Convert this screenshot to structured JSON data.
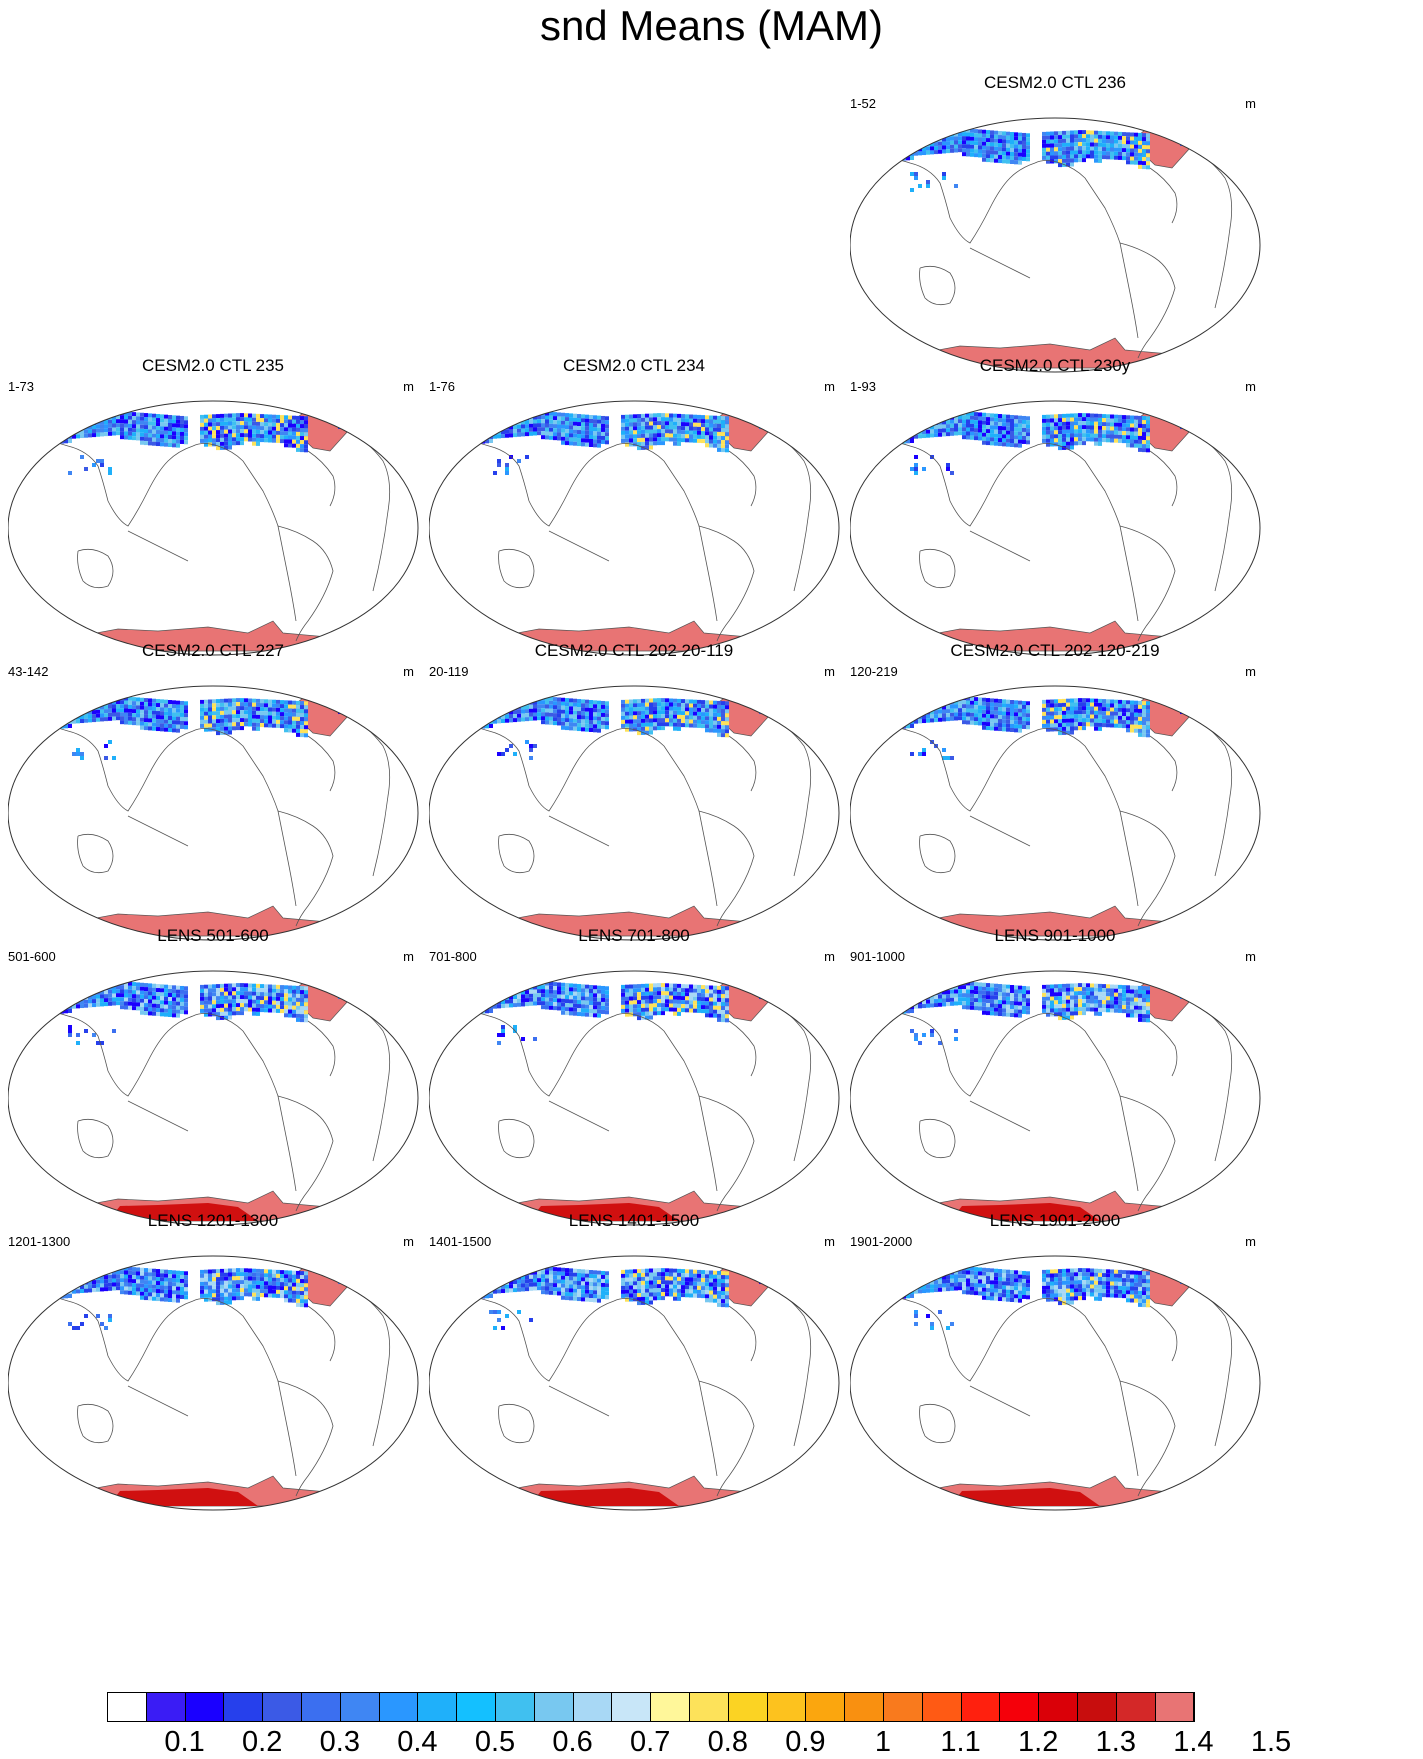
{
  "title": "snd Means (MAM)",
  "units": "m",
  "panels": [
    {
      "id": "p01",
      "title": "CESM2.0 CTL 236",
      "range": "1-52",
      "col": 2,
      "row": 0,
      "style": "ctl",
      "antarctica": "plain"
    },
    {
      "id": "p02",
      "title": "CESM2.0 CTL 235",
      "range": "1-73",
      "col": 0,
      "row": 1,
      "style": "ctl",
      "antarctica": "plain"
    },
    {
      "id": "p03",
      "title": "CESM2.0 CTL 234",
      "range": "1-76",
      "col": 1,
      "row": 1,
      "style": "ctl",
      "antarctica": "plain"
    },
    {
      "id": "p04",
      "title": "CESM2.0 CTL 230y",
      "range": "1-93",
      "col": 2,
      "row": 1,
      "style": "ctl",
      "antarctica": "plain"
    },
    {
      "id": "p05",
      "title": "CESM2.0 CTL 227",
      "range": "43-142",
      "col": 0,
      "row": 2,
      "style": "ctl",
      "antarctica": "plain"
    },
    {
      "id": "p06",
      "title": "CESM2.0 CTL 202 20-119",
      "range": "20-119",
      "col": 1,
      "row": 2,
      "style": "ctl",
      "antarctica": "plain"
    },
    {
      "id": "p07",
      "title": "CESM2.0 CTL 202 120-219",
      "range": "120-219",
      "col": 2,
      "row": 2,
      "style": "ctl",
      "antarctica": "plain"
    },
    {
      "id": "p08",
      "title": "LENS 501-600",
      "range": "501-600",
      "col": 0,
      "row": 3,
      "style": "lens",
      "antarctica": "deep"
    },
    {
      "id": "p09",
      "title": "LENS 701-800",
      "range": "701-800",
      "col": 1,
      "row": 3,
      "style": "lens",
      "antarctica": "deep"
    },
    {
      "id": "p10",
      "title": "LENS 901-1000",
      "range": "901-1000",
      "col": 2,
      "row": 3,
      "style": "lens",
      "antarctica": "deep"
    },
    {
      "id": "p11",
      "title": "LENS 1201-1300",
      "range": "1201-1300",
      "col": 0,
      "row": 4,
      "style": "lens",
      "antarctica": "deep"
    },
    {
      "id": "p12",
      "title": "LENS 1401-1500",
      "range": "1401-1500",
      "col": 1,
      "row": 4,
      "style": "lens",
      "antarctica": "deep"
    },
    {
      "id": "p13",
      "title": "LENS 1901-2000",
      "range": "1901-2000",
      "col": 2,
      "row": 4,
      "style": "lens",
      "antarctica": "deep"
    }
  ],
  "colorbar": {
    "colors": [
      "#ffffff",
      "#3a1cf5",
      "#1a00ff",
      "#2640ec",
      "#3b5ae6",
      "#3b6ff0",
      "#3f86f3",
      "#2a97ff",
      "#1fb0fa",
      "#14c0ff",
      "#40c0f0",
      "#78c8f0",
      "#a8d8f5",
      "#c8e6f8",
      "#fff79a",
      "#fde25a",
      "#fbd323",
      "#fdc21e",
      "#fba60e",
      "#f99010",
      "#f97a1d",
      "#ff5a14",
      "#ff200e",
      "#f5000a",
      "#da0008",
      "#c80d0d",
      "#d42828",
      "#e87474"
    ],
    "tick_labels": [
      "0.1",
      "0.2",
      "0.3",
      "0.4",
      "0.5",
      "0.6",
      "0.7",
      "0.8",
      "0.9",
      "1",
      "1.1",
      "1.2",
      "1.3",
      "1.4",
      "1.5"
    ]
  }
}
